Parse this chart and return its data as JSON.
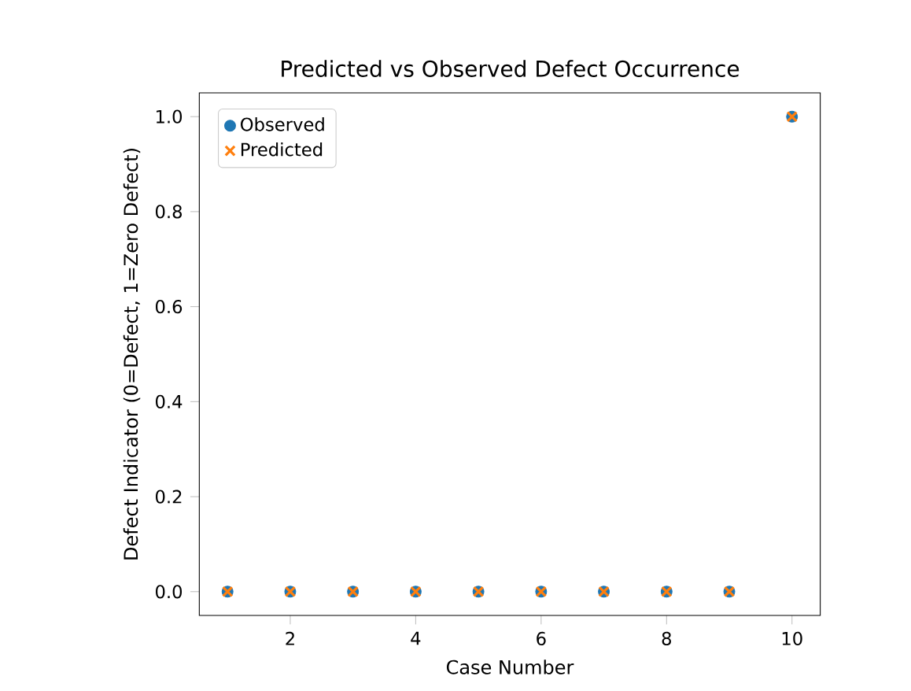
{
  "chart_data": {
    "type": "scatter",
    "title": "Predicted vs Observed Defect Occurrence",
    "xlabel": "Case Number",
    "ylabel": "Defect Indicator (0=Defect, 1=Zero Defect)",
    "x": [
      1,
      2,
      3,
      4,
      5,
      6,
      7,
      8,
      9,
      10
    ],
    "series": [
      {
        "name": "Observed",
        "color": "#1f77b4",
        "marker": "circle",
        "values": [
          0,
          0,
          0,
          0,
          0,
          0,
          0,
          0,
          0,
          1
        ]
      },
      {
        "name": "Predicted",
        "color": "#ff7f0e",
        "marker": "cross",
        "values": [
          0,
          0,
          0,
          0,
          0,
          0,
          0,
          0,
          0,
          1
        ]
      }
    ],
    "xlim": [
      0.55,
      10.45
    ],
    "ylim": [
      -0.05,
      1.05
    ],
    "xticks": [
      2,
      4,
      6,
      8,
      10
    ],
    "yticks": [
      {
        "value": 0,
        "label": "0.0"
      },
      {
        "value": 0.2,
        "label": "0.2"
      },
      {
        "value": 0.4,
        "label": "0.4"
      },
      {
        "value": 0.6,
        "label": "0.6"
      },
      {
        "value": 0.8,
        "label": "0.8"
      },
      {
        "value": 1,
        "label": "1.0"
      }
    ],
    "legend": "top left",
    "grid": false
  }
}
